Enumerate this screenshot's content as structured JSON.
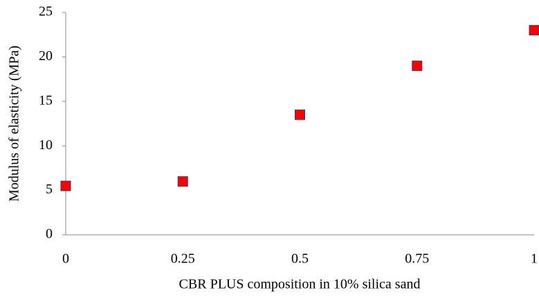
{
  "chart_data": {
    "type": "scatter",
    "xlabel": "CBR PLUS composition in 10% silica sand",
    "ylabel": "Modulus of elasticity (MPa)",
    "series": [
      {
        "color": "#ff0000",
        "x": [
          0,
          0.25,
          0.5,
          0.75,
          1
        ],
        "values": [
          5.5,
          6,
          13.5,
          19,
          23
        ]
      }
    ],
    "xlim": [
      0,
      1
    ],
    "xticks": [
      0,
      0.25,
      0.5,
      0.75,
      1
    ],
    "ylim": [
      0,
      25
    ],
    "yticks": [
      0,
      5,
      10,
      15,
      20,
      25
    ],
    "grid": false
  }
}
